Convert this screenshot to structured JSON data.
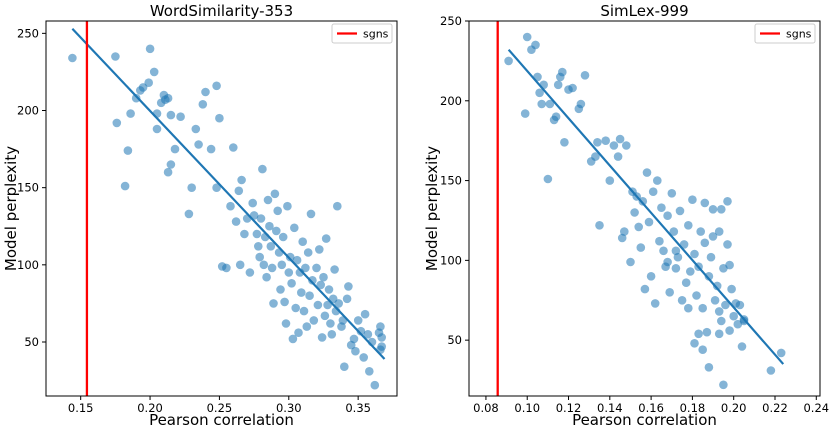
{
  "chart_data": [
    {
      "type": "scatter",
      "title": "WordSimilarity-353",
      "xlabel": "Pearson correlation",
      "ylabel": "Model perplexity",
      "xlim": [
        0.125,
        0.378
      ],
      "ylim": [
        15,
        258
      ],
      "xticks": [
        0.15,
        0.2,
        0.25,
        0.3,
        0.35
      ],
      "xtick_labels": [
        "0.15",
        "0.20",
        "0.25",
        "0.30",
        "0.35"
      ],
      "yticks": [
        50,
        100,
        150,
        200,
        250
      ],
      "ytick_labels": [
        "50",
        "100",
        "150",
        "200",
        "250"
      ],
      "grid": false,
      "legend": {
        "position": "top-right",
        "entries": [
          "sgns"
        ]
      },
      "colors": {
        "points": "#1f77b4",
        "fit": "#1f77b4",
        "sgns": "#ff0000"
      },
      "vline": {
        "name": "sgns",
        "x": 0.1545
      },
      "fit_line": {
        "x": [
          0.144,
          0.369
        ],
        "y": [
          253,
          39
        ]
      },
      "points": [
        [
          0.144,
          234
        ],
        [
          0.175,
          235
        ],
        [
          0.186,
          198
        ],
        [
          0.19,
          208
        ],
        [
          0.193,
          213
        ],
        [
          0.195,
          215
        ],
        [
          0.199,
          218
        ],
        [
          0.2,
          240
        ],
        [
          0.203,
          225
        ],
        [
          0.205,
          188
        ],
        [
          0.208,
          205
        ],
        [
          0.21,
          210
        ],
        [
          0.211,
          207
        ],
        [
          0.213,
          208
        ],
        [
          0.215,
          197
        ],
        [
          0.176,
          192
        ],
        [
          0.182,
          151
        ],
        [
          0.184,
          174
        ],
        [
          0.205,
          198
        ],
        [
          0.213,
          160
        ],
        [
          0.215,
          165
        ],
        [
          0.218,
          175
        ],
        [
          0.222,
          196
        ],
        [
          0.228,
          133
        ],
        [
          0.23,
          150
        ],
        [
          0.233,
          188
        ],
        [
          0.235,
          178
        ],
        [
          0.238,
          204
        ],
        [
          0.24,
          212
        ],
        [
          0.244,
          175
        ],
        [
          0.248,
          216
        ],
        [
          0.25,
          195
        ],
        [
          0.248,
          150
        ],
        [
          0.252,
          99
        ],
        [
          0.255,
          98
        ],
        [
          0.258,
          138
        ],
        [
          0.26,
          176
        ],
        [
          0.262,
          128
        ],
        [
          0.264,
          148
        ],
        [
          0.265,
          100
        ],
        [
          0.266,
          155
        ],
        [
          0.268,
          120
        ],
        [
          0.27,
          130
        ],
        [
          0.272,
          95
        ],
        [
          0.274,
          140
        ],
        [
          0.275,
          132
        ],
        [
          0.277,
          120
        ],
        [
          0.278,
          112
        ],
        [
          0.279,
          105
        ],
        [
          0.28,
          130
        ],
        [
          0.281,
          162
        ],
        [
          0.282,
          100
        ],
        [
          0.283,
          118
        ],
        [
          0.284,
          92
        ],
        [
          0.285,
          142
        ],
        [
          0.286,
          125
        ],
        [
          0.287,
          112
        ],
        [
          0.288,
          98
        ],
        [
          0.289,
          75
        ],
        [
          0.29,
          146
        ],
        [
          0.291,
          122
        ],
        [
          0.292,
          135
        ],
        [
          0.293,
          108
        ],
        [
          0.294,
          84
        ],
        [
          0.295,
          100
        ],
        [
          0.296,
          118
        ],
        [
          0.297,
          76
        ],
        [
          0.298,
          62
        ],
        [
          0.299,
          138
        ],
        [
          0.3,
          95
        ],
        [
          0.301,
          105
        ],
        [
          0.302,
          88
        ],
        [
          0.303,
          52
        ],
        [
          0.304,
          124
        ],
        [
          0.305,
          72
        ],
        [
          0.306,
          103
        ],
        [
          0.307,
          56
        ],
        [
          0.308,
          95
        ],
        [
          0.309,
          82
        ],
        [
          0.31,
          115
        ],
        [
          0.311,
          70
        ],
        [
          0.312,
          98
        ],
        [
          0.313,
          60
        ],
        [
          0.314,
          108
        ],
        [
          0.315,
          80
        ],
        [
          0.316,
          133
        ],
        [
          0.317,
          90
        ],
        [
          0.318,
          64
        ],
        [
          0.32,
          98
        ],
        [
          0.321,
          74
        ],
        [
          0.322,
          110
        ],
        [
          0.323,
          87
        ],
        [
          0.324,
          53
        ],
        [
          0.325,
          92
        ],
        [
          0.326,
          67
        ],
        [
          0.327,
          117
        ],
        [
          0.328,
          74
        ],
        [
          0.329,
          84
        ],
        [
          0.33,
          62
        ],
        [
          0.331,
          55
        ],
        [
          0.332,
          78
        ],
        [
          0.333,
          97
        ],
        [
          0.334,
          70
        ],
        [
          0.335,
          138
        ],
        [
          0.336,
          75
        ],
        [
          0.338,
          60
        ],
        [
          0.339,
          64
        ],
        [
          0.34,
          34
        ],
        [
          0.342,
          78
        ],
        [
          0.343,
          86
        ],
        [
          0.345,
          48
        ],
        [
          0.347,
          52
        ],
        [
          0.348,
          44
        ],
        [
          0.35,
          64
        ],
        [
          0.352,
          57
        ],
        [
          0.354,
          40
        ],
        [
          0.355,
          68
        ],
        [
          0.357,
          55
        ],
        [
          0.358,
          31
        ],
        [
          0.36,
          50
        ],
        [
          0.362,
          22
        ],
        [
          0.365,
          56
        ],
        [
          0.366,
          45
        ],
        [
          0.367,
          53
        ],
        [
          0.367,
          47
        ],
        [
          0.366,
          60
        ]
      ]
    },
    {
      "type": "scatter",
      "title": "SimLex-999",
      "xlabel": "Pearson correlation",
      "ylabel": "Model perplexity",
      "xlim": [
        0.0718,
        0.2418
      ],
      "ylim": [
        15,
        250
      ],
      "xticks": [
        0.08,
        0.1,
        0.12,
        0.14,
        0.16,
        0.18,
        0.2,
        0.22,
        0.24
      ],
      "xtick_labels": [
        "0.08",
        "0.10",
        "0.12",
        "0.14",
        "0.16",
        "0.18",
        "0.20",
        "0.22",
        "0.24"
      ],
      "yticks": [
        50,
        100,
        150,
        200,
        250
      ],
      "ytick_labels": [
        "50",
        "100",
        "150",
        "200",
        "250"
      ],
      "grid": false,
      "legend": {
        "position": "top-right",
        "entries": [
          "sgns"
        ]
      },
      "colors": {
        "points": "#1f77b4",
        "fit": "#1f77b4",
        "sgns": "#ff0000"
      },
      "vline": {
        "name": "sgns",
        "x": 0.0857
      },
      "fit_line": {
        "x": [
          0.091,
          0.224
        ],
        "y": [
          232,
          35
        ]
      },
      "points": [
        [
          0.091,
          225
        ],
        [
          0.099,
          192
        ],
        [
          0.1,
          240
        ],
        [
          0.102,
          232
        ],
        [
          0.104,
          235
        ],
        [
          0.105,
          215
        ],
        [
          0.106,
          205
        ],
        [
          0.107,
          198
        ],
        [
          0.108,
          210
        ],
        [
          0.11,
          151
        ],
        [
          0.111,
          198
        ],
        [
          0.113,
          188
        ],
        [
          0.114,
          190
        ],
        [
          0.115,
          210
        ],
        [
          0.116,
          215
        ],
        [
          0.117,
          218
        ],
        [
          0.118,
          174
        ],
        [
          0.12,
          207
        ],
        [
          0.122,
          208
        ],
        [
          0.125,
          195
        ],
        [
          0.126,
          198
        ],
        [
          0.128,
          216
        ],
        [
          0.131,
          162
        ],
        [
          0.133,
          165
        ],
        [
          0.134,
          174
        ],
        [
          0.135,
          122
        ],
        [
          0.138,
          175
        ],
        [
          0.14,
          150
        ],
        [
          0.142,
          172
        ],
        [
          0.144,
          165
        ],
        [
          0.145,
          176
        ],
        [
          0.146,
          114
        ],
        [
          0.147,
          118
        ],
        [
          0.148,
          172
        ],
        [
          0.15,
          99
        ],
        [
          0.151,
          143
        ],
        [
          0.152,
          130
        ],
        [
          0.153,
          140
        ],
        [
          0.154,
          121
        ],
        [
          0.155,
          108
        ],
        [
          0.156,
          137
        ],
        [
          0.157,
          82
        ],
        [
          0.158,
          155
        ],
        [
          0.159,
          124
        ],
        [
          0.16,
          90
        ],
        [
          0.161,
          143
        ],
        [
          0.162,
          73
        ],
        [
          0.163,
          150
        ],
        [
          0.164,
          112
        ],
        [
          0.165,
          133
        ],
        [
          0.166,
          106
        ],
        [
          0.167,
          96
        ],
        [
          0.168,
          128
        ],
        [
          0.169,
          80
        ],
        [
          0.17,
          142
        ],
        [
          0.171,
          118
        ],
        [
          0.172,
          95
        ],
        [
          0.173,
          102
        ],
        [
          0.174,
          131
        ],
        [
          0.175,
          75
        ],
        [
          0.176,
          110
        ],
        [
          0.177,
          86
        ],
        [
          0.178,
          122
        ],
        [
          0.179,
          93
        ],
        [
          0.18,
          138
        ],
        [
          0.181,
          104
        ],
        [
          0.182,
          78
        ],
        [
          0.183,
          96
        ],
        [
          0.184,
          118
        ],
        [
          0.185,
          70
        ],
        [
          0.186,
          111
        ],
        [
          0.187,
          55
        ],
        [
          0.188,
          90
        ],
        [
          0.189,
          102
        ],
        [
          0.19,
          132
        ],
        [
          0.191,
          75
        ],
        [
          0.192,
          84
        ],
        [
          0.193,
          118
        ],
        [
          0.194,
          62
        ],
        [
          0.195,
          95
        ],
        [
          0.196,
          72
        ],
        [
          0.197,
          110
        ],
        [
          0.198,
          56
        ],
        [
          0.199,
          82
        ],
        [
          0.2,
          65
        ],
        [
          0.201,
          73
        ],
        [
          0.202,
          60
        ],
        [
          0.203,
          72
        ],
        [
          0.204,
          46
        ],
        [
          0.205,
          62
        ],
        [
          0.181,
          48
        ],
        [
          0.183,
          54
        ],
        [
          0.185,
          44
        ],
        [
          0.188,
          33
        ],
        [
          0.193,
          54
        ],
        [
          0.195,
          22
        ],
        [
          0.197,
          137
        ],
        [
          0.198,
          97
        ],
        [
          0.186,
          136
        ],
        [
          0.19,
          115
        ],
        [
          0.194,
          132
        ],
        [
          0.218,
          31
        ],
        [
          0.223,
          42
        ],
        [
          0.205,
          63
        ],
        [
          0.193,
          68
        ],
        [
          0.178,
          70
        ],
        [
          0.172,
          106
        ],
        [
          0.168,
          99
        ]
      ]
    }
  ]
}
